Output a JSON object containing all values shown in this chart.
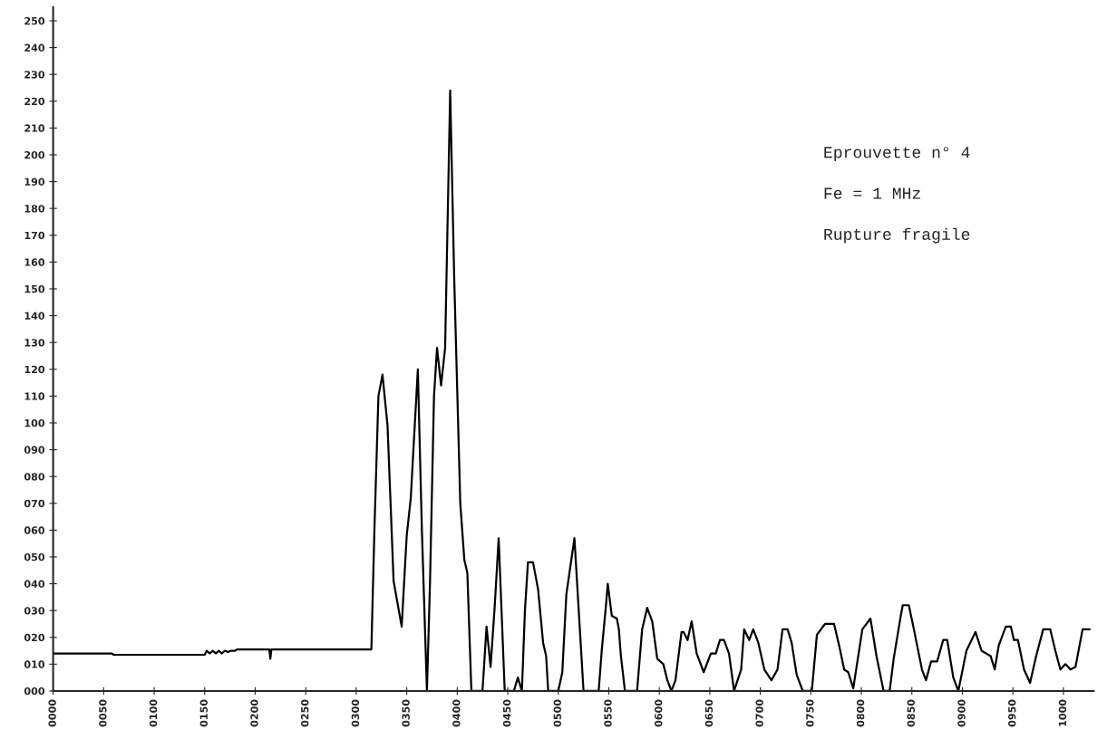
{
  "chart_data": {
    "type": "line",
    "grid": false,
    "marker": "none",
    "line_style": "solid",
    "xlim": [
      0,
      1030
    ],
    "ylim": [
      0,
      255
    ],
    "xticks": [
      {
        "value": 0,
        "label": "0000"
      },
      {
        "value": 50,
        "label": "0050"
      },
      {
        "value": 100,
        "label": "0100"
      },
      {
        "value": 150,
        "label": "0150"
      },
      {
        "value": 200,
        "label": "0200"
      },
      {
        "value": 250,
        "label": "0250"
      },
      {
        "value": 300,
        "label": "0300"
      },
      {
        "value": 350,
        "label": "0350"
      },
      {
        "value": 400,
        "label": "0400"
      },
      {
        "value": 450,
        "label": "0450"
      },
      {
        "value": 500,
        "label": "0500"
      },
      {
        "value": 550,
        "label": "0550"
      },
      {
        "value": 600,
        "label": "0600"
      },
      {
        "value": 650,
        "label": "0650"
      },
      {
        "value": 700,
        "label": "0700"
      },
      {
        "value": 750,
        "label": "0750"
      },
      {
        "value": 800,
        "label": "0800"
      },
      {
        "value": 850,
        "label": "0850"
      },
      {
        "value": 900,
        "label": "0900"
      },
      {
        "value": 950,
        "label": "0950"
      },
      {
        "value": 1000,
        "label": "1000"
      }
    ],
    "yticks": [
      {
        "value": 0,
        "label": "000"
      },
      {
        "value": 10,
        "label": "010"
      },
      {
        "value": 20,
        "label": "020"
      },
      {
        "value": 30,
        "label": "030"
      },
      {
        "value": 40,
        "label": "040"
      },
      {
        "value": 50,
        "label": "050"
      },
      {
        "value": 60,
        "label": "060"
      },
      {
        "value": 70,
        "label": "070"
      },
      {
        "value": 80,
        "label": "080"
      },
      {
        "value": 90,
        "label": "090"
      },
      100,
      110,
      120,
      130,
      140,
      150,
      160,
      170,
      180,
      190,
      200,
      210,
      220,
      230,
      240,
      250
    ],
    "annotations": [
      "Eprouvette n° 4",
      "Fe = 1 MHz",
      "Rupture fragile"
    ],
    "series": [
      {
        "color": "#000000",
        "x": [
          0,
          58,
          60,
          150,
          152,
          155,
          158,
          161,
          164,
          167,
          170,
          173,
          176,
          180,
          182,
          214,
          215,
          216,
          218,
          315,
          318,
          322,
          326,
          331,
          337,
          345,
          350,
          354,
          361,
          365,
          370,
          373,
          377,
          380,
          384,
          388,
          393,
          397,
          403,
          407,
          410,
          414,
          425,
          429,
          433,
          437,
          441,
          447,
          456,
          460,
          464,
          467,
          470,
          475,
          480,
          485,
          488,
          490,
          500,
          504,
          508,
          516,
          525,
          540,
          543,
          547,
          549,
          553,
          558,
          560,
          562,
          566,
          578,
          583,
          588,
          593,
          598,
          604,
          608,
          612,
          616,
          622,
          624,
          628,
          632,
          637,
          644,
          651,
          656,
          660,
          664,
          669,
          674,
          681,
          684,
          689,
          693,
          698,
          704,
          711,
          717,
          722,
          727,
          731,
          736,
          742,
          751,
          756,
          764,
          773,
          778,
          783,
          787,
          792,
          801,
          809,
          815,
          822,
          828,
          832,
          839,
          841,
          847,
          852,
          860,
          864,
          869,
          875,
          881,
          885,
          891,
          896,
          904,
          913,
          919,
          928,
          932,
          936,
          943,
          948,
          951,
          955,
          961,
          967,
          973,
          980,
          987,
          992,
          997,
          1002,
          1007,
          1012,
          1019,
          1026
        ],
        "values": [
          14,
          14,
          13.5,
          13.5,
          15,
          14,
          15,
          14,
          15,
          14,
          15,
          14.5,
          15,
          15,
          15.5,
          15.5,
          12,
          15.5,
          15.5,
          15.5,
          60,
          110,
          118,
          99,
          41,
          24,
          58,
          72,
          120,
          60,
          0,
          40,
          110,
          128,
          114,
          128,
          224,
          154,
          70,
          49,
          44,
          0,
          0,
          24,
          9,
          31,
          57,
          0,
          0,
          5,
          0,
          30,
          48,
          48,
          38,
          18,
          13,
          0,
          0,
          7,
          36,
          57,
          0,
          0,
          15,
          31,
          40,
          28,
          27,
          23,
          13,
          0,
          0,
          23,
          31,
          26,
          12,
          10,
          4,
          0,
          4,
          22,
          22,
          19,
          26,
          14,
          7,
          14,
          14,
          19,
          19,
          14,
          0,
          8,
          23,
          19,
          23,
          18,
          8,
          4,
          8,
          23,
          23,
          18,
          6,
          0,
          0,
          21,
          25,
          25,
          17,
          8,
          7,
          1,
          23,
          27,
          13,
          0,
          0,
          12,
          28,
          32,
          32,
          23,
          8,
          4,
          11,
          11,
          19,
          19,
          5,
          0,
          15,
          22,
          15,
          13,
          8,
          17,
          24,
          24,
          19,
          19,
          8,
          3,
          13,
          23,
          23,
          15,
          8,
          10,
          8,
          9,
          23,
          23
        ]
      }
    ]
  }
}
